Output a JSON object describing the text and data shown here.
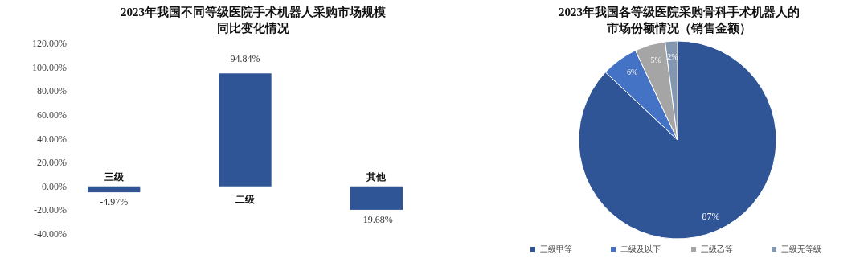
{
  "chart_data": [
    {
      "type": "bar",
      "title": "2023年我国不同等级医院手术机器人采购市场规模同比变化情况",
      "categories": [
        "三级",
        "二级",
        "其他"
      ],
      "values": [
        -4.97,
        94.84,
        -19.68
      ],
      "value_labels": [
        "-4.97%",
        "94.84%",
        "-19.68%"
      ],
      "color": "#2f5597",
      "ylim": [
        -40,
        120
      ],
      "yticks": [
        {
          "value": -40,
          "label": "-40.00%"
        },
        {
          "value": -20,
          "label": "-20.00%"
        },
        {
          "value": 0,
          "label": "0.00%"
        },
        {
          "value": 20,
          "label": "20.00%"
        },
        {
          "value": 40,
          "label": "40.00%"
        },
        {
          "value": 60,
          "label": "60.00%"
        },
        {
          "value": 80,
          "label": "80.00%"
        },
        {
          "value": 100,
          "label": "100.00%"
        },
        {
          "value": 120,
          "label": "120.00%"
        }
      ]
    },
    {
      "type": "pie",
      "title": "2023年我国各等级医院采购骨科手术机器人的市场份额情况（销售金额）",
      "categories": [
        "三级甲等",
        "二级及以下",
        "三级乙等",
        "三级无等级"
      ],
      "values": [
        87,
        6,
        5,
        2
      ],
      "value_labels": [
        "87%",
        "6%",
        "5%",
        "2%"
      ],
      "colors": [
        "#2f5597",
        "#4472c4",
        "#a5a5a5",
        "#8497b0"
      ],
      "legend": "bottom"
    }
  ]
}
